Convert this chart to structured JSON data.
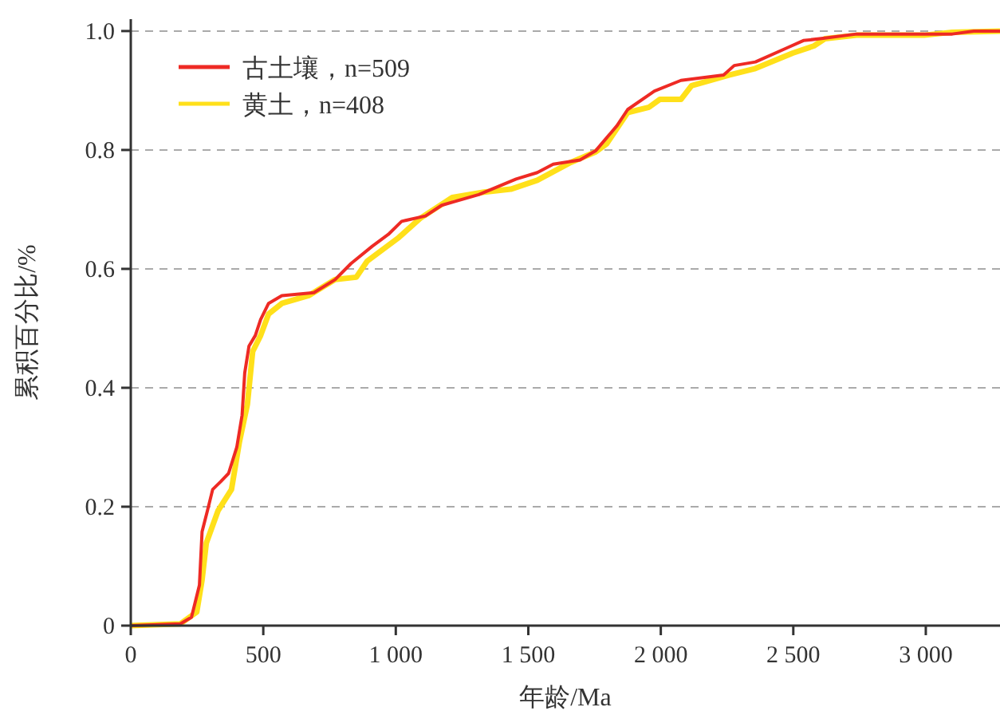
{
  "chart_data": {
    "type": "line",
    "xlabel": "年龄/Ma",
    "ylabel": "累积百分比/%",
    "xlim": [
      0,
      3280
    ],
    "ylim": [
      0,
      1.02
    ],
    "xticks": [
      0,
      500,
      {
        "value": 1000,
        "label": "1 000"
      },
      {
        "value": 1500,
        "label": "1 500"
      },
      {
        "value": 2000,
        "label": "2 000"
      },
      {
        "value": 2500,
        "label": "2 500"
      },
      {
        "value": 3000,
        "label": "3 000"
      }
    ],
    "yticks": [
      0,
      0.2,
      0.4,
      0.6,
      0.8,
      {
        "value": 1,
        "label": "1.0"
      }
    ],
    "grid": "y",
    "legend": "top left",
    "line_style": "solid",
    "marker": "none",
    "series": [
      {
        "name": "古土壤，n=509",
        "color": "#ee2a24",
        "x": [
          0,
          187,
          229,
          259,
          269,
          289,
          309,
          339,
          369,
          400,
          420,
          430,
          446,
          470,
          490,
          520,
          570,
          691,
          771,
          831,
          911,
          972,
          1022,
          1112,
          1173,
          1313,
          1454,
          1534,
          1594,
          1695,
          1755,
          1835,
          1875,
          1976,
          2076,
          2237,
          2277,
          2357,
          2478,
          2538,
          2619,
          2739,
          3100,
          3181,
          3280
        ],
        "values": [
          0,
          0.003,
          0.014,
          0.068,
          0.158,
          0.193,
          0.229,
          0.242,
          0.256,
          0.3,
          0.354,
          0.425,
          0.47,
          0.488,
          0.515,
          0.542,
          0.555,
          0.56,
          0.582,
          0.609,
          0.638,
          0.658,
          0.68,
          0.689,
          0.707,
          0.725,
          0.751,
          0.762,
          0.776,
          0.783,
          0.799,
          0.841,
          0.868,
          0.899,
          0.917,
          0.926,
          0.942,
          0.948,
          0.972,
          0.984,
          0.988,
          0.995,
          0.995,
          1,
          1
        ]
      },
      {
        "name": "黄土，n=408",
        "color": "#ffe01a",
        "x": [
          0,
          187,
          249,
          269,
          285,
          329,
          380,
          410,
          440,
          460,
          490,
          520,
          570,
          671,
          771,
          851,
          892,
          1012,
          1092,
          1213,
          1333,
          1434,
          1534,
          1655,
          1755,
          1795,
          1875,
          1956,
          1996,
          2076,
          2116,
          2257,
          2357,
          2498,
          2578,
          2619,
          2739,
          2994,
          3100,
          3280
        ],
        "values": [
          0,
          0.003,
          0.023,
          0.077,
          0.139,
          0.193,
          0.229,
          0.309,
          0.372,
          0.461,
          0.488,
          0.524,
          0.542,
          0.555,
          0.582,
          0.586,
          0.613,
          0.653,
          0.685,
          0.72,
          0.729,
          0.734,
          0.749,
          0.778,
          0.797,
          0.81,
          0.863,
          0.872,
          0.885,
          0.885,
          0.908,
          0.926,
          0.937,
          0.963,
          0.975,
          0.987,
          0.993,
          0.993,
          0.998,
          1
        ]
      }
    ]
  }
}
